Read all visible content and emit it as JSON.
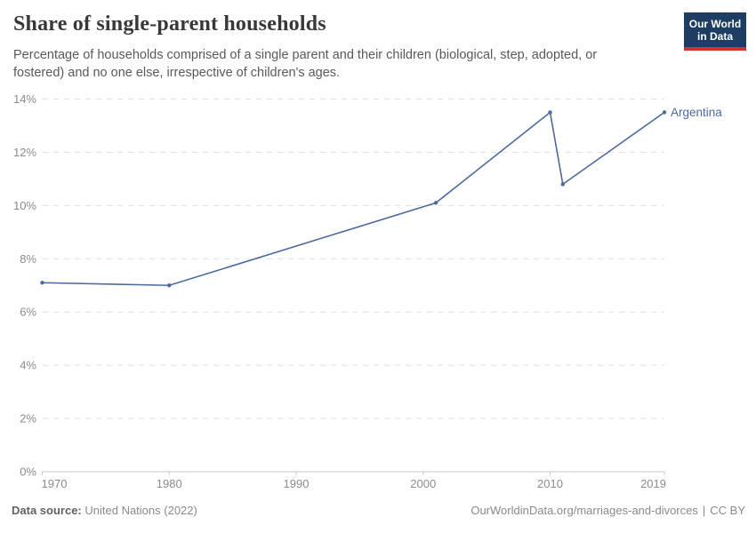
{
  "header": {
    "title": "Share of single-parent households",
    "subtitle": "Percentage of households comprised of a single parent and their children (biological, step, adopted, or fostered) and no one else, irrespective of children's ages.",
    "logo": {
      "line1": "Our World",
      "line2": "in Data"
    }
  },
  "chart_data": {
    "type": "line",
    "title": "Share of single-parent households",
    "x": [
      1970,
      1980,
      2001,
      2010,
      2011,
      2019
    ],
    "series": [
      {
        "name": "Argentina",
        "color": "#4c6a9f",
        "values": [
          7.1,
          7.0,
          10.1,
          13.5,
          10.8,
          13.5
        ]
      }
    ],
    "xlim": [
      1970,
      2019
    ],
    "ylim": [
      0,
      14
    ],
    "x_ticks": [
      1970,
      1980,
      1990,
      2000,
      2010,
      2019
    ],
    "x_tick_labels": [
      "1970",
      "1980",
      "1990",
      "2000",
      "2010",
      "2019"
    ],
    "y_ticks": [
      0,
      2,
      4,
      6,
      8,
      10,
      12,
      14
    ],
    "y_tick_labels": [
      "0%",
      "2%",
      "4%",
      "6%",
      "8%",
      "10%",
      "12%",
      "14%"
    ],
    "grid": "horizontal-dashed",
    "legend_position": "end-of-line",
    "xlabel": "",
    "ylabel": ""
  },
  "colors": {
    "line": "#4c6a9f",
    "series_label": "#4c6a9f",
    "grid": "#e0e0e0",
    "axis": "#c8c8c8",
    "tick_text": "#8b8b8b",
    "logo_bg": "#1d3d63",
    "logo_accent": "#d0342c"
  },
  "footer": {
    "source_label": "Data source:",
    "source_value": "United Nations (2022)",
    "url": "OurWorldinData.org/marriages-and-divorces",
    "divider": "|",
    "license": "CC BY"
  }
}
